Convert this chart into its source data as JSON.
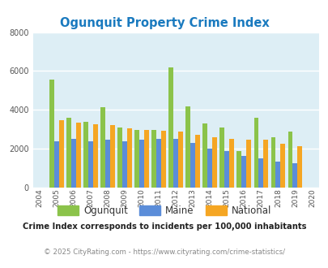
{
  "title": "Ogunquit Property Crime Index",
  "years": [
    2004,
    2005,
    2006,
    2007,
    2008,
    2009,
    2010,
    2011,
    2012,
    2013,
    2014,
    2015,
    2016,
    2017,
    2018,
    2019,
    2020
  ],
  "ogunquit": [
    null,
    5550,
    3600,
    3400,
    4150,
    3100,
    2950,
    2950,
    6200,
    4200,
    3300,
    3100,
    1900,
    3600,
    2600,
    2900,
    null
  ],
  "maine": [
    null,
    2400,
    2500,
    2400,
    2450,
    2400,
    2450,
    2500,
    2500,
    2300,
    2000,
    1900,
    1650,
    1500,
    1350,
    1250,
    null
  ],
  "national": [
    null,
    3450,
    3350,
    3250,
    3200,
    3050,
    2980,
    2920,
    2900,
    2700,
    2600,
    2500,
    2450,
    2450,
    2250,
    2150,
    null
  ],
  "ogunquit_color": "#8bc34a",
  "maine_color": "#5b8dd9",
  "national_color": "#f5a623",
  "bg_color": "#ddeef5",
  "grid_color": "#ffffff",
  "ylim": [
    0,
    8000
  ],
  "yticks": [
    0,
    2000,
    4000,
    6000,
    8000
  ],
  "footnote1": "Crime Index corresponds to incidents per 100,000 inhabitants",
  "footnote2": "© 2025 CityRating.com - https://www.cityrating.com/crime-statistics/",
  "title_color": "#1a7abf",
  "footnote1_color": "#222222",
  "footnote2_color": "#888888",
  "legend_labels": [
    "Ogunquit",
    "Maine",
    "National"
  ]
}
